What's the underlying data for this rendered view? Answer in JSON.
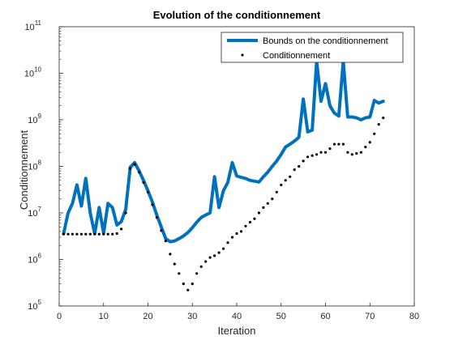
{
  "chart_data": {
    "type": "line",
    "title": "Evolution of the conditionnement",
    "xlabel": "Iteration",
    "ylabel": "Conditionnement",
    "xlim": [
      0,
      80
    ],
    "ylim": [
      100000,
      100000000000
    ],
    "yscale": "log",
    "x_ticks": [
      "0",
      "10",
      "20",
      "30",
      "40",
      "50",
      "60",
      "70",
      "80"
    ],
    "y_ticks": [
      {
        "base": "10",
        "exp": "5"
      },
      {
        "base": "10",
        "exp": "6"
      },
      {
        "base": "10",
        "exp": "7"
      },
      {
        "base": "10",
        "exp": "8"
      },
      {
        "base": "10",
        "exp": "9"
      },
      {
        "base": "10",
        "exp": "10"
      },
      {
        "base": "10",
        "exp": "11"
      }
    ],
    "grid": false,
    "legend_position": "top-right",
    "series": [
      {
        "name": "Bounds on the conditionnement",
        "style": "line",
        "color": "#0072BD",
        "x": [
          1,
          2,
          3,
          4,
          5,
          6,
          7,
          8,
          9,
          10,
          11,
          12,
          13,
          14,
          15,
          16,
          17,
          18,
          19,
          20,
          21,
          22,
          23,
          24,
          25,
          26,
          27,
          28,
          29,
          30,
          31,
          32,
          33,
          34,
          35,
          36,
          37,
          38,
          39,
          40,
          41,
          42,
          43,
          44,
          45,
          46,
          47,
          48,
          49,
          50,
          51,
          52,
          53,
          54,
          55,
          56,
          57,
          58,
          59,
          60,
          61,
          62,
          63,
          64,
          65,
          66,
          67,
          68,
          69,
          70,
          71,
          72,
          73
        ],
        "y": [
          3600000,
          10000000,
          16000000,
          40000000,
          14000000,
          55000000,
          10000000,
          3600000,
          13000000,
          3700000,
          16000000,
          13000000,
          5500000,
          6500000,
          12000000,
          95000000,
          120000000,
          80000000,
          50000000,
          30000000,
          17000000,
          9000000,
          5000000,
          2800000,
          2400000,
          2500000,
          2800000,
          3200000,
          3800000,
          4800000,
          6300000,
          8000000,
          9000000,
          10000000,
          60000000,
          13000000,
          30000000,
          45000000,
          120000000,
          62000000,
          58000000,
          55000000,
          50000000,
          48000000,
          46000000,
          60000000,
          75000000,
          100000000,
          130000000,
          180000000,
          260000000,
          300000000,
          350000000,
          420000000,
          2800000000,
          550000000,
          600000000,
          18000000000,
          2500000000,
          6000000000,
          2000000000,
          1400000000,
          1200000000,
          18000000000,
          1150000000,
          1150000000,
          1100000000,
          1000000000,
          1100000000,
          1150000000,
          2600000000,
          2300000000,
          2500000000
        ]
      },
      {
        "name": "Conditionnement",
        "style": "dotted",
        "color": "#000000",
        "x": [
          1,
          2,
          3,
          4,
          5,
          6,
          7,
          8,
          9,
          10,
          11,
          12,
          13,
          14,
          15,
          16,
          17,
          18,
          19,
          20,
          21,
          22,
          23,
          24,
          25,
          26,
          27,
          28,
          29,
          30,
          31,
          32,
          33,
          34,
          35,
          36,
          37,
          38,
          39,
          40,
          41,
          42,
          43,
          44,
          45,
          46,
          47,
          48,
          49,
          50,
          51,
          52,
          53,
          54,
          55,
          56,
          57,
          58,
          59,
          60,
          61,
          62,
          63,
          64,
          65,
          66,
          67,
          68,
          69,
          70,
          71,
          72,
          73
        ],
        "y": [
          3500000,
          3500000,
          3500000,
          3500000,
          3500000,
          3500000,
          3500000,
          3500000,
          3500000,
          3500000,
          3500000,
          3500000,
          3600000,
          4500000,
          10000000,
          90000000,
          110000000,
          75000000,
          45000000,
          28000000,
          15000000,
          8000000,
          4200000,
          2500000,
          1300000,
          800000,
          500000,
          300000,
          220000,
          300000,
          500000,
          700000,
          900000,
          1100000,
          1200000,
          1400000,
          1700000,
          2300000,
          3000000,
          3600000,
          4000000,
          5200000,
          6300000,
          7500000,
          10000000,
          13000000,
          16000000,
          20000000,
          28000000,
          40000000,
          50000000,
          60000000,
          85000000,
          100000000,
          130000000,
          160000000,
          170000000,
          180000000,
          200000000,
          200000000,
          240000000,
          300000000,
          300000000,
          300000000,
          200000000,
          180000000,
          190000000,
          200000000,
          260000000,
          330000000,
          500000000,
          800000000,
          1100000000
        ]
      }
    ]
  }
}
